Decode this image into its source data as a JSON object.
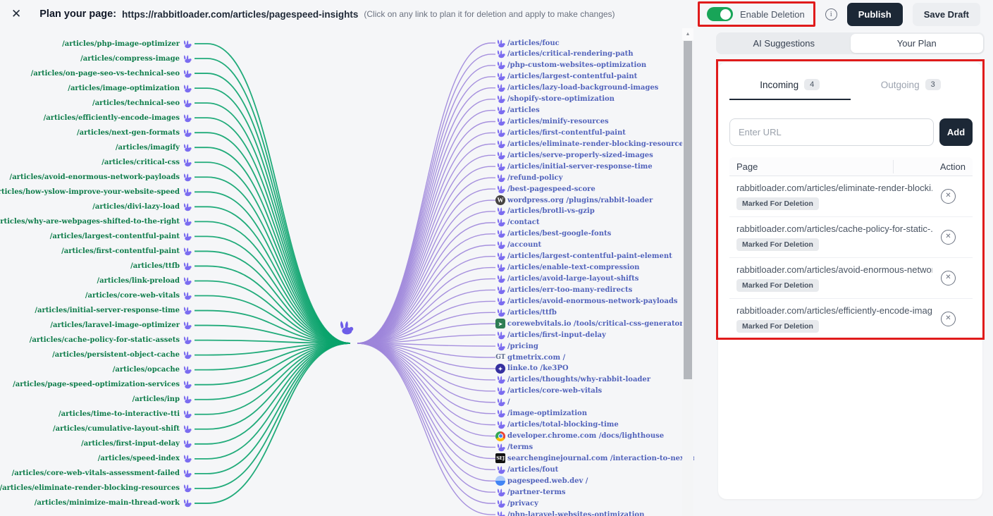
{
  "header": {
    "close_glyph": "✕",
    "title": "Plan your page:",
    "url": "https://rabbitloader.com/articles/pagespeed-insights",
    "note": "(Click on any link to plan it for deletion and apply to make changes)",
    "enable_deletion_label": "Enable Deletion",
    "info_glyph": "i",
    "publish_label": "Publish",
    "save_draft_label": "Save Draft"
  },
  "graph": {
    "colors": {
      "incoming_line": "#0aa36b",
      "incoming_text": "#0e7c4a",
      "outgoing_line": "#9d85da",
      "outgoing_text": "#5263bb",
      "rabbit_icon": "#7b6cf0"
    },
    "incoming_pages": [
      "/articles/php-image-optimizer",
      "/articles/compress-image",
      "/articles/on-page-seo-vs-technical-seo",
      "/articles/image-optimization",
      "/articles/technical-seo",
      "/articles/efficiently-encode-images",
      "/articles/next-gen-formats",
      "/articles/imagify",
      "/articles/critical-css",
      "/articles/avoid-enormous-network-payloads",
      "/articles/how-yslow-improve-your-website-speed",
      "/articles/divi-lazy-load",
      "/articles/why-are-webpages-shifted-to-the-right",
      "/articles/largest-contentful-paint",
      "/articles/first-contentful-paint",
      "/articles/ttfb",
      "/articles/link-preload",
      "/articles/core-web-vitals",
      "/articles/initial-server-response-time",
      "/articles/laravel-image-optimizer",
      "/articles/cache-policy-for-static-assets",
      "/articles/persistent-object-cache",
      "/articles/opcache",
      "/articles/page-speed-optimization-services",
      "/articles/inp",
      "/articles/time-to-interactive-tti",
      "/articles/cumulative-layout-shift",
      "/articles/first-input-delay",
      "/articles/speed-index",
      "/articles/core-web-vitals-assessment-failed",
      "/articles/eliminate-render-blocking-resources",
      "/articles/minimize-main-thread-work"
    ],
    "outgoing_pages": [
      {
        "label": "/articles/fouc",
        "icon": "rabbit"
      },
      {
        "label": "/articles/critical-rendering-path",
        "icon": "rabbit"
      },
      {
        "label": "/php-custom-websites-optimization",
        "icon": "rabbit"
      },
      {
        "label": "/articles/largest-contentful-paint",
        "icon": "rabbit"
      },
      {
        "label": "/articles/lazy-load-background-images",
        "icon": "rabbit"
      },
      {
        "label": "/shopify-store-optimization",
        "icon": "rabbit"
      },
      {
        "label": "/articles",
        "icon": "rabbit"
      },
      {
        "label": "/articles/minify-resources",
        "icon": "rabbit"
      },
      {
        "label": "/articles/first-contentful-paint",
        "icon": "rabbit"
      },
      {
        "label": "/articles/eliminate-render-blocking-resources",
        "icon": "rabbit"
      },
      {
        "label": "/articles/serve-properly-sized-images",
        "icon": "rabbit"
      },
      {
        "label": "/articles/initial-server-response-time",
        "icon": "rabbit"
      },
      {
        "label": "/refund-policy",
        "icon": "rabbit"
      },
      {
        "label": "/best-pagespeed-score",
        "icon": "rabbit"
      },
      {
        "label": "wordpress.org /plugins/rabbit-loader",
        "icon": "wordpress"
      },
      {
        "label": "/articles/brotli-vs-gzip",
        "icon": "rabbit"
      },
      {
        "label": "/contact",
        "icon": "rabbit"
      },
      {
        "label": "/articles/best-google-fonts",
        "icon": "rabbit"
      },
      {
        "label": "/account",
        "icon": "rabbit"
      },
      {
        "label": "/articles/largest-contentful-paint-element",
        "icon": "rabbit"
      },
      {
        "label": "/articles/enable-text-compression",
        "icon": "rabbit"
      },
      {
        "label": "/articles/avoid-large-layout-shifts",
        "icon": "rabbit"
      },
      {
        "label": "/articles/err-too-many-redirects",
        "icon": "rabbit"
      },
      {
        "label": "/articles/avoid-enormous-network-payloads",
        "icon": "rabbit"
      },
      {
        "label": "/articles/ttfb",
        "icon": "rabbit"
      },
      {
        "label": "corewebvitals.io /tools/critical-css-generator",
        "icon": "corewebvitals"
      },
      {
        "label": "/articles/first-input-delay",
        "icon": "rabbit"
      },
      {
        "label": "/pricing",
        "icon": "rabbit"
      },
      {
        "label": "gtmetrix.com /",
        "icon": "gtmetrix"
      },
      {
        "label": "linke.to /ke3PO",
        "icon": "linketo"
      },
      {
        "label": "/articles/thoughts/why-rabbit-loader",
        "icon": "rabbit"
      },
      {
        "label": "/articles/core-web-vitals",
        "icon": "rabbit"
      },
      {
        "label": "/",
        "icon": "rabbit"
      },
      {
        "label": "/image-optimization",
        "icon": "rabbit"
      },
      {
        "label": "/articles/total-blocking-time",
        "icon": "rabbit"
      },
      {
        "label": "developer.chrome.com /docs/lighthouse",
        "icon": "chrome"
      },
      {
        "label": "/terms",
        "icon": "rabbit"
      },
      {
        "label": "searchenginejournal.com /interaction-to-next-paint-inp-everyth",
        "icon": "sej"
      },
      {
        "label": "/articles/fout",
        "icon": "rabbit"
      },
      {
        "label": "pagespeed.web.dev /",
        "icon": "pagespeed"
      },
      {
        "label": "/partner-terms",
        "icon": "rabbit"
      },
      {
        "label": "/privacy",
        "icon": "rabbit"
      },
      {
        "label": "/php-laravel-websites-optimization",
        "icon": "rabbit"
      }
    ],
    "external_icon_glyphs": {
      "wordpress": "W",
      "corewebvitals": "➤",
      "gtmetrix": "GT",
      "linketo": "✦",
      "sej": "SEJ",
      "pagespeed": ""
    },
    "scroll_up_glyph": "▲"
  },
  "panel": {
    "tabs": [
      {
        "label": "AI Suggestions",
        "active": false
      },
      {
        "label": "Your Plan",
        "active": true
      }
    ],
    "incoming_tab": {
      "label": "Incoming",
      "count": "4"
    },
    "outgoing_tab": {
      "label": "Outgoing",
      "count": "3"
    },
    "url_input_placeholder": "Enter URL",
    "add_label": "Add",
    "table": {
      "columns": {
        "page": "Page",
        "action": "Action"
      },
      "remove_glyph": "✕",
      "rows": [
        {
          "url": "rabbitloader.com/articles/eliminate-render-blocki...",
          "status": "Marked For Deletion"
        },
        {
          "url": "rabbitloader.com/articles/cache-policy-for-static-...",
          "status": "Marked For Deletion"
        },
        {
          "url": "rabbitloader.com/articles/avoid-enormous-networ...",
          "status": "Marked For Deletion"
        },
        {
          "url": "rabbitloader.com/articles/efficiently-encode-images",
          "status": "Marked For Deletion"
        }
      ]
    }
  }
}
